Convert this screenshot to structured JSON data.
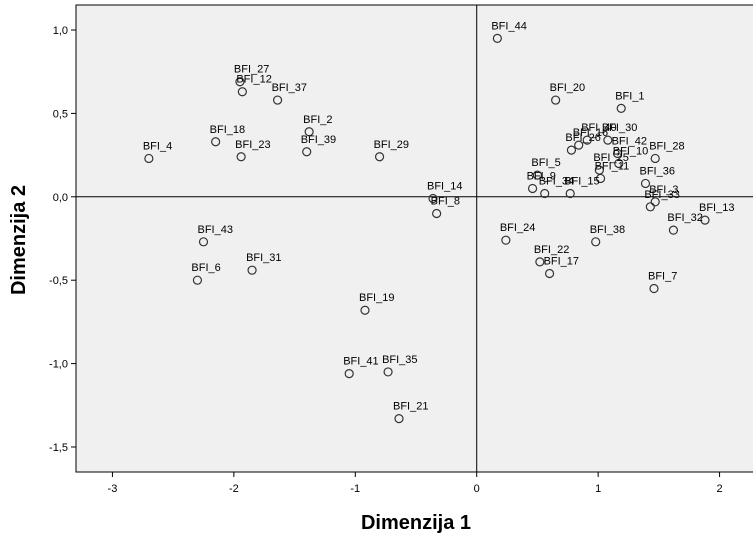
{
  "chart_data": {
    "type": "scatter",
    "title": "",
    "xlabel": "Dimenzija 1",
    "ylabel": "Dimenzija 2",
    "xlim": [
      -3.3,
      2.3
    ],
    "ylim": [
      -1.65,
      1.15
    ],
    "xticks": [
      -3,
      -2,
      -1,
      0,
      1,
      2
    ],
    "xtick_labels": [
      "-3",
      "-2",
      "-1",
      "0",
      "1",
      "2"
    ],
    "yticks": [
      1.0,
      0.5,
      0.0,
      -0.5,
      -1.0,
      -1.5
    ],
    "ytick_labels": [
      "1,0",
      "0,5",
      "0,0",
      "-0,5",
      "-1,0",
      "-1,5"
    ],
    "reference_lines": {
      "x": 0,
      "y": 0
    },
    "grid": false,
    "colors": {
      "plot_background": "#f0f0f0",
      "marker_stroke": "#333333",
      "axis": "#000000"
    },
    "points": [
      {
        "label": "BFI_44",
        "x": 0.17,
        "y": 0.95
      },
      {
        "label": "BFI_27",
        "x": -1.95,
        "y": 0.69
      },
      {
        "label": "BFI_12",
        "x": -1.93,
        "y": 0.63
      },
      {
        "label": "BFI_37",
        "x": -1.64,
        "y": 0.58
      },
      {
        "label": "BFI_18",
        "x": -2.15,
        "y": 0.33
      },
      {
        "label": "BFI_23",
        "x": -1.94,
        "y": 0.24
      },
      {
        "label": "BFI_2",
        "x": -1.38,
        "y": 0.39
      },
      {
        "label": "BFI_39",
        "x": -1.4,
        "y": 0.27
      },
      {
        "label": "BFI_4",
        "x": -2.7,
        "y": 0.23
      },
      {
        "label": "BFI_29",
        "x": -0.8,
        "y": 0.24
      },
      {
        "label": "BFI_14",
        "x": -0.36,
        "y": -0.01
      },
      {
        "label": "BFI_8",
        "x": -0.33,
        "y": -0.1
      },
      {
        "label": "BFI_43",
        "x": -2.25,
        "y": -0.27
      },
      {
        "label": "BFI_6",
        "x": -2.3,
        "y": -0.5
      },
      {
        "label": "BFI_31",
        "x": -1.85,
        "y": -0.44
      },
      {
        "label": "BFI_19",
        "x": -0.92,
        "y": -0.68
      },
      {
        "label": "BFI_41",
        "x": -1.05,
        "y": -1.06
      },
      {
        "label": "BFI_35",
        "x": -0.73,
        "y": -1.05
      },
      {
        "label": "BFI_21",
        "x": -0.64,
        "y": -1.33
      },
      {
        "label": "BFI_20",
        "x": 0.65,
        "y": 0.58
      },
      {
        "label": "BFI_1",
        "x": 1.19,
        "y": 0.53
      },
      {
        "label": "BFI_26",
        "x": 0.78,
        "y": 0.28
      },
      {
        "label": "BFI_16",
        "x": 0.84,
        "y": 0.31
      },
      {
        "label": "BFI_40",
        "x": 0.91,
        "y": 0.34
      },
      {
        "label": "BFI_30",
        "x": 1.08,
        "y": 0.34
      },
      {
        "label": "BFI_42",
        "x": 1.16,
        "y": 0.26
      },
      {
        "label": "BFI_10",
        "x": 1.17,
        "y": 0.2
      },
      {
        "label": "BFI_5",
        "x": 0.5,
        "y": 0.13
      },
      {
        "label": "BFI_25",
        "x": 1.01,
        "y": 0.16
      },
      {
        "label": "BFI_11",
        "x": 1.02,
        "y": 0.11
      },
      {
        "label": "BFI_28",
        "x": 1.47,
        "y": 0.23
      },
      {
        "label": "BFI_15",
        "x": 0.77,
        "y": 0.02
      },
      {
        "label": "BFI_9",
        "x": 0.46,
        "y": 0.05
      },
      {
        "label": "BFI_36",
        "x": 1.39,
        "y": 0.08
      },
      {
        "label": "BFI_34",
        "x": 0.56,
        "y": 0.02
      },
      {
        "label": "BFI_3",
        "x": 1.47,
        "y": -0.03
      },
      {
        "label": "BFI_13",
        "x": 1.88,
        "y": -0.14
      },
      {
        "label": "BFI_24",
        "x": 0.24,
        "y": -0.26
      },
      {
        "label": "BFI_38",
        "x": 0.98,
        "y": -0.27
      },
      {
        "label": "BFI_33",
        "x": 1.43,
        "y": -0.06
      },
      {
        "label": "BFI_32",
        "x": 1.62,
        "y": -0.2
      },
      {
        "label": "BFI_22",
        "x": 0.52,
        "y": -0.39
      },
      {
        "label": "BFI_17",
        "x": 0.6,
        "y": -0.46
      },
      {
        "label": "BFI_7",
        "x": 1.46,
        "y": -0.55
      }
    ]
  }
}
